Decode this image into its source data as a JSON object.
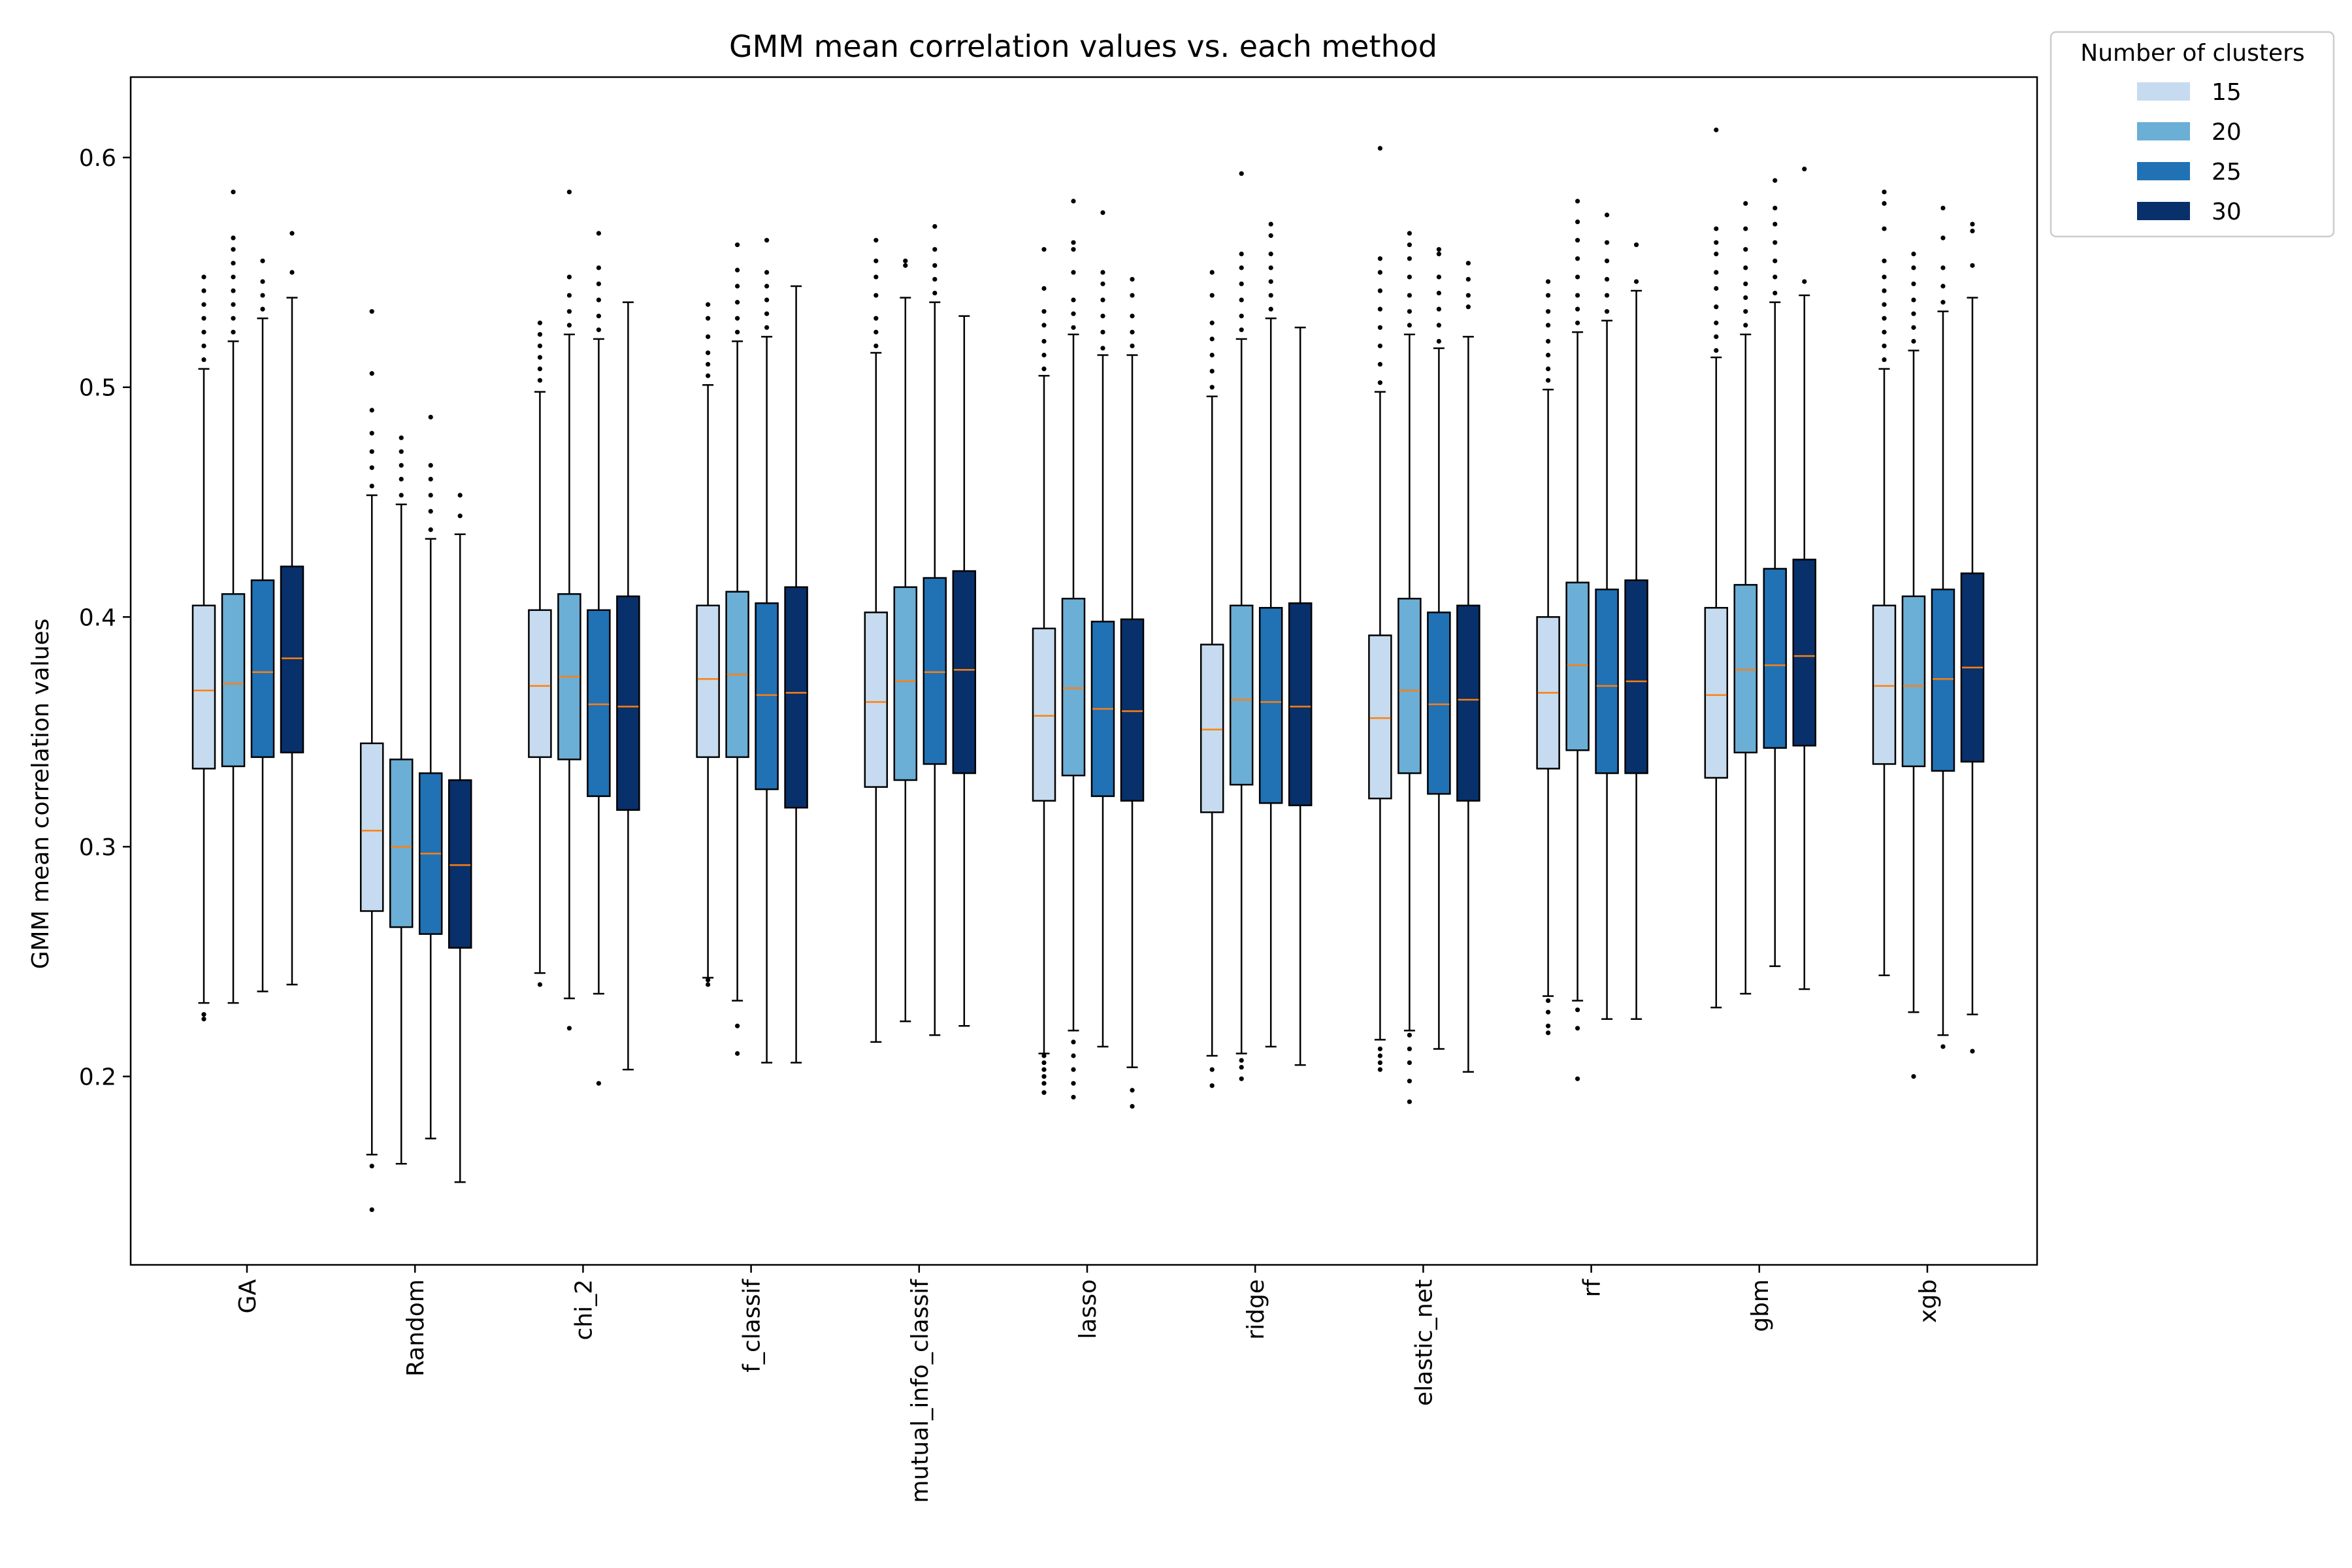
{
  "chart_data": {
    "type": "box",
    "title": "GMM mean correlation values vs. each method",
    "ylabel": "GMM mean correlation values",
    "xlabel": "",
    "ylim": [
      0.118,
      0.635
    ],
    "yticks": [
      0.2,
      0.3,
      0.4,
      0.5,
      0.6
    ],
    "ytick_labels": [
      "0.2",
      "0.3",
      "0.4",
      "0.5",
      "0.6"
    ],
    "grid": false,
    "legend": {
      "title": "Number of clusters",
      "placement": "outside-top-right"
    },
    "categories": [
      "GA",
      "Random",
      "chi_2",
      "f_classif",
      "mutual_info_classif",
      "lasso",
      "ridge",
      "elastic_net",
      "rf",
      "gbm",
      "xgb"
    ],
    "series": [
      {
        "name": "15",
        "color": "#c6dbef",
        "boxes": [
          {
            "whislo": 0.232,
            "q1": 0.334,
            "med": 0.368,
            "q3": 0.405,
            "whishi": 0.508,
            "fliers": [
              0.225,
              0.227,
              0.512,
              0.518,
              0.524,
              0.53,
              0.536,
              0.542,
              0.548
            ]
          },
          {
            "whislo": 0.166,
            "q1": 0.272,
            "med": 0.307,
            "q3": 0.345,
            "whishi": 0.453,
            "fliers": [
              0.142,
              0.161,
              0.457,
              0.465,
              0.472,
              0.48,
              0.49,
              0.506,
              0.533
            ]
          },
          {
            "whislo": 0.245,
            "q1": 0.339,
            "med": 0.37,
            "q3": 0.403,
            "whishi": 0.498,
            "fliers": [
              0.24,
              0.503,
              0.508,
              0.513,
              0.518,
              0.523,
              0.528
            ]
          },
          {
            "whislo": 0.243,
            "q1": 0.339,
            "med": 0.373,
            "q3": 0.405,
            "whishi": 0.501,
            "fliers": [
              0.24,
              0.242,
              0.505,
              0.51,
              0.515,
              0.522,
              0.53,
              0.536
            ]
          },
          {
            "whislo": 0.215,
            "q1": 0.326,
            "med": 0.363,
            "q3": 0.402,
            "whishi": 0.515,
            "fliers": [
              0.518,
              0.524,
              0.53,
              0.54,
              0.548,
              0.555,
              0.564
            ]
          },
          {
            "whislo": 0.21,
            "q1": 0.32,
            "med": 0.357,
            "q3": 0.395,
            "whishi": 0.505,
            "fliers": [
              0.193,
              0.197,
              0.2,
              0.203,
              0.206,
              0.209,
              0.508,
              0.514,
              0.52,
              0.527,
              0.533,
              0.543,
              0.56
            ]
          },
          {
            "whislo": 0.209,
            "q1": 0.315,
            "med": 0.351,
            "q3": 0.388,
            "whishi": 0.496,
            "fliers": [
              0.196,
              0.203,
              0.5,
              0.507,
              0.514,
              0.521,
              0.528,
              0.54,
              0.55
            ]
          },
          {
            "whislo": 0.216,
            "q1": 0.321,
            "med": 0.356,
            "q3": 0.392,
            "whishi": 0.498,
            "fliers": [
              0.203,
              0.206,
              0.209,
              0.212,
              0.502,
              0.51,
              0.518,
              0.526,
              0.534,
              0.542,
              0.55,
              0.556,
              0.604
            ]
          },
          {
            "whislo": 0.235,
            "q1": 0.334,
            "med": 0.367,
            "q3": 0.4,
            "whishi": 0.499,
            "fliers": [
              0.219,
              0.222,
              0.228,
              0.233,
              0.503,
              0.508,
              0.514,
              0.52,
              0.527,
              0.533,
              0.54,
              0.546
            ]
          },
          {
            "whislo": 0.23,
            "q1": 0.33,
            "med": 0.366,
            "q3": 0.404,
            "whishi": 0.513,
            "fliers": [
              0.516,
              0.522,
              0.528,
              0.535,
              0.543,
              0.55,
              0.558,
              0.563,
              0.569,
              0.612
            ]
          },
          {
            "whislo": 0.244,
            "q1": 0.336,
            "med": 0.37,
            "q3": 0.405,
            "whishi": 0.508,
            "fliers": [
              0.512,
              0.518,
              0.524,
              0.53,
              0.536,
              0.542,
              0.548,
              0.555,
              0.569,
              0.58,
              0.585
            ]
          }
        ]
      },
      {
        "name": "20",
        "color": "#6baed6",
        "boxes": [
          {
            "whislo": 0.232,
            "q1": 0.335,
            "med": 0.371,
            "q3": 0.41,
            "whishi": 0.52,
            "fliers": [
              0.524,
              0.53,
              0.536,
              0.542,
              0.548,
              0.554,
              0.56,
              0.565,
              0.585
            ]
          },
          {
            "whislo": 0.162,
            "q1": 0.265,
            "med": 0.3,
            "q3": 0.338,
            "whishi": 0.449,
            "fliers": [
              0.453,
              0.46,
              0.466,
              0.472,
              0.478
            ]
          },
          {
            "whislo": 0.234,
            "q1": 0.338,
            "med": 0.374,
            "q3": 0.41,
            "whishi": 0.523,
            "fliers": [
              0.221,
              0.527,
              0.533,
              0.54,
              0.548,
              0.585
            ]
          },
          {
            "whislo": 0.233,
            "q1": 0.339,
            "med": 0.375,
            "q3": 0.411,
            "whishi": 0.52,
            "fliers": [
              0.21,
              0.222,
              0.524,
              0.53,
              0.537,
              0.544,
              0.551,
              0.562
            ]
          },
          {
            "whislo": 0.224,
            "q1": 0.329,
            "med": 0.372,
            "q3": 0.413,
            "whishi": 0.539,
            "fliers": [
              0.553,
              0.555
            ]
          },
          {
            "whislo": 0.22,
            "q1": 0.331,
            "med": 0.369,
            "q3": 0.408,
            "whishi": 0.523,
            "fliers": [
              0.191,
              0.197,
              0.203,
              0.209,
              0.215,
              0.526,
              0.532,
              0.538,
              0.55,
              0.56,
              0.563,
              0.581
            ]
          },
          {
            "whislo": 0.21,
            "q1": 0.327,
            "med": 0.364,
            "q3": 0.405,
            "whishi": 0.521,
            "fliers": [
              0.199,
              0.204,
              0.207,
              0.525,
              0.531,
              0.538,
              0.545,
              0.552,
              0.558,
              0.593
            ]
          },
          {
            "whislo": 0.22,
            "q1": 0.332,
            "med": 0.368,
            "q3": 0.408,
            "whishi": 0.523,
            "fliers": [
              0.189,
              0.198,
              0.206,
              0.212,
              0.218,
              0.527,
              0.533,
              0.54,
              0.548,
              0.556,
              0.562,
              0.567
            ]
          },
          {
            "whislo": 0.233,
            "q1": 0.342,
            "med": 0.379,
            "q3": 0.415,
            "whishi": 0.524,
            "fliers": [
              0.199,
              0.221,
              0.229,
              0.528,
              0.534,
              0.54,
              0.548,
              0.556,
              0.564,
              0.572,
              0.581
            ]
          },
          {
            "whislo": 0.236,
            "q1": 0.341,
            "med": 0.377,
            "q3": 0.414,
            "whishi": 0.523,
            "fliers": [
              0.527,
              0.533,
              0.539,
              0.545,
              0.552,
              0.56,
              0.569,
              0.58
            ]
          },
          {
            "whislo": 0.228,
            "q1": 0.335,
            "med": 0.37,
            "q3": 0.409,
            "whishi": 0.516,
            "fliers": [
              0.2,
              0.52,
              0.526,
              0.532,
              0.538,
              0.545,
              0.552,
              0.558
            ]
          }
        ]
      },
      {
        "name": "25",
        "color": "#2171b5",
        "boxes": [
          {
            "whislo": 0.237,
            "q1": 0.339,
            "med": 0.376,
            "q3": 0.416,
            "whishi": 0.53,
            "fliers": [
              0.534,
              0.54,
              0.546,
              0.555
            ]
          },
          {
            "whislo": 0.173,
            "q1": 0.262,
            "med": 0.297,
            "q3": 0.332,
            "whishi": 0.434,
            "fliers": [
              0.438,
              0.446,
              0.453,
              0.46,
              0.466,
              0.487
            ]
          },
          {
            "whislo": 0.236,
            "q1": 0.322,
            "med": 0.362,
            "q3": 0.403,
            "whishi": 0.521,
            "fliers": [
              0.197,
              0.525,
              0.531,
              0.538,
              0.545,
              0.552,
              0.567
            ]
          },
          {
            "whislo": 0.206,
            "q1": 0.325,
            "med": 0.366,
            "q3": 0.406,
            "whishi": 0.522,
            "fliers": [
              0.526,
              0.532,
              0.538,
              0.544,
              0.55,
              0.564
            ]
          },
          {
            "whislo": 0.218,
            "q1": 0.336,
            "med": 0.376,
            "q3": 0.417,
            "whishi": 0.537,
            "fliers": [
              0.541,
              0.547,
              0.553,
              0.56,
              0.57
            ]
          },
          {
            "whislo": 0.213,
            "q1": 0.322,
            "med": 0.36,
            "q3": 0.398,
            "whishi": 0.514,
            "fliers": [
              0.517,
              0.524,
              0.531,
              0.538,
              0.545,
              0.55,
              0.576
            ]
          },
          {
            "whislo": 0.213,
            "q1": 0.319,
            "med": 0.363,
            "q3": 0.404,
            "whishi": 0.53,
            "fliers": [
              0.534,
              0.54,
              0.546,
              0.552,
              0.558,
              0.566,
              0.571
            ]
          },
          {
            "whislo": 0.212,
            "q1": 0.323,
            "med": 0.362,
            "q3": 0.402,
            "whishi": 0.517,
            "fliers": [
              0.52,
              0.527,
              0.534,
              0.541,
              0.548,
              0.558,
              0.56
            ]
          },
          {
            "whislo": 0.225,
            "q1": 0.332,
            "med": 0.37,
            "q3": 0.412,
            "whishi": 0.529,
            "fliers": [
              0.533,
              0.54,
              0.547,
              0.555,
              0.563,
              0.575
            ]
          },
          {
            "whislo": 0.248,
            "q1": 0.343,
            "med": 0.379,
            "q3": 0.421,
            "whishi": 0.537,
            "fliers": [
              0.541,
              0.548,
              0.555,
              0.563,
              0.571,
              0.578,
              0.59
            ]
          },
          {
            "whislo": 0.218,
            "q1": 0.333,
            "med": 0.373,
            "q3": 0.412,
            "whishi": 0.533,
            "fliers": [
              0.213,
              0.537,
              0.544,
              0.552,
              0.565,
              0.578
            ]
          }
        ]
      },
      {
        "name": "30",
        "color": "#08306b",
        "boxes": [
          {
            "whislo": 0.24,
            "q1": 0.341,
            "med": 0.382,
            "q3": 0.422,
            "whishi": 0.539,
            "fliers": [
              0.55,
              0.567
            ]
          },
          {
            "whislo": 0.154,
            "q1": 0.256,
            "med": 0.292,
            "q3": 0.329,
            "whishi": 0.436,
            "fliers": [
              0.444,
              0.453
            ]
          },
          {
            "whislo": 0.203,
            "q1": 0.316,
            "med": 0.361,
            "q3": 0.409,
            "whishi": 0.537,
            "fliers": []
          },
          {
            "whislo": 0.206,
            "q1": 0.317,
            "med": 0.367,
            "q3": 0.413,
            "whishi": 0.544,
            "fliers": []
          },
          {
            "whislo": 0.222,
            "q1": 0.332,
            "med": 0.377,
            "q3": 0.42,
            "whishi": 0.531,
            "fliers": []
          },
          {
            "whislo": 0.204,
            "q1": 0.32,
            "med": 0.359,
            "q3": 0.399,
            "whishi": 0.514,
            "fliers": [
              0.187,
              0.194,
              0.518,
              0.524,
              0.531,
              0.54,
              0.547
            ]
          },
          {
            "whislo": 0.205,
            "q1": 0.318,
            "med": 0.361,
            "q3": 0.406,
            "whishi": 0.526,
            "fliers": []
          },
          {
            "whislo": 0.202,
            "q1": 0.32,
            "med": 0.364,
            "q3": 0.405,
            "whishi": 0.522,
            "fliers": [
              0.535,
              0.54,
              0.547,
              0.554
            ]
          },
          {
            "whislo": 0.225,
            "q1": 0.332,
            "med": 0.372,
            "q3": 0.416,
            "whishi": 0.542,
            "fliers": [
              0.546,
              0.562
            ]
          },
          {
            "whislo": 0.238,
            "q1": 0.344,
            "med": 0.383,
            "q3": 0.425,
            "whishi": 0.54,
            "fliers": [
              0.546,
              0.595
            ]
          },
          {
            "whislo": 0.227,
            "q1": 0.337,
            "med": 0.378,
            "q3": 0.419,
            "whishi": 0.539,
            "fliers": [
              0.211,
              0.553,
              0.568,
              0.571
            ]
          }
        ]
      }
    ],
    "median_color": "#ff7f0e"
  }
}
